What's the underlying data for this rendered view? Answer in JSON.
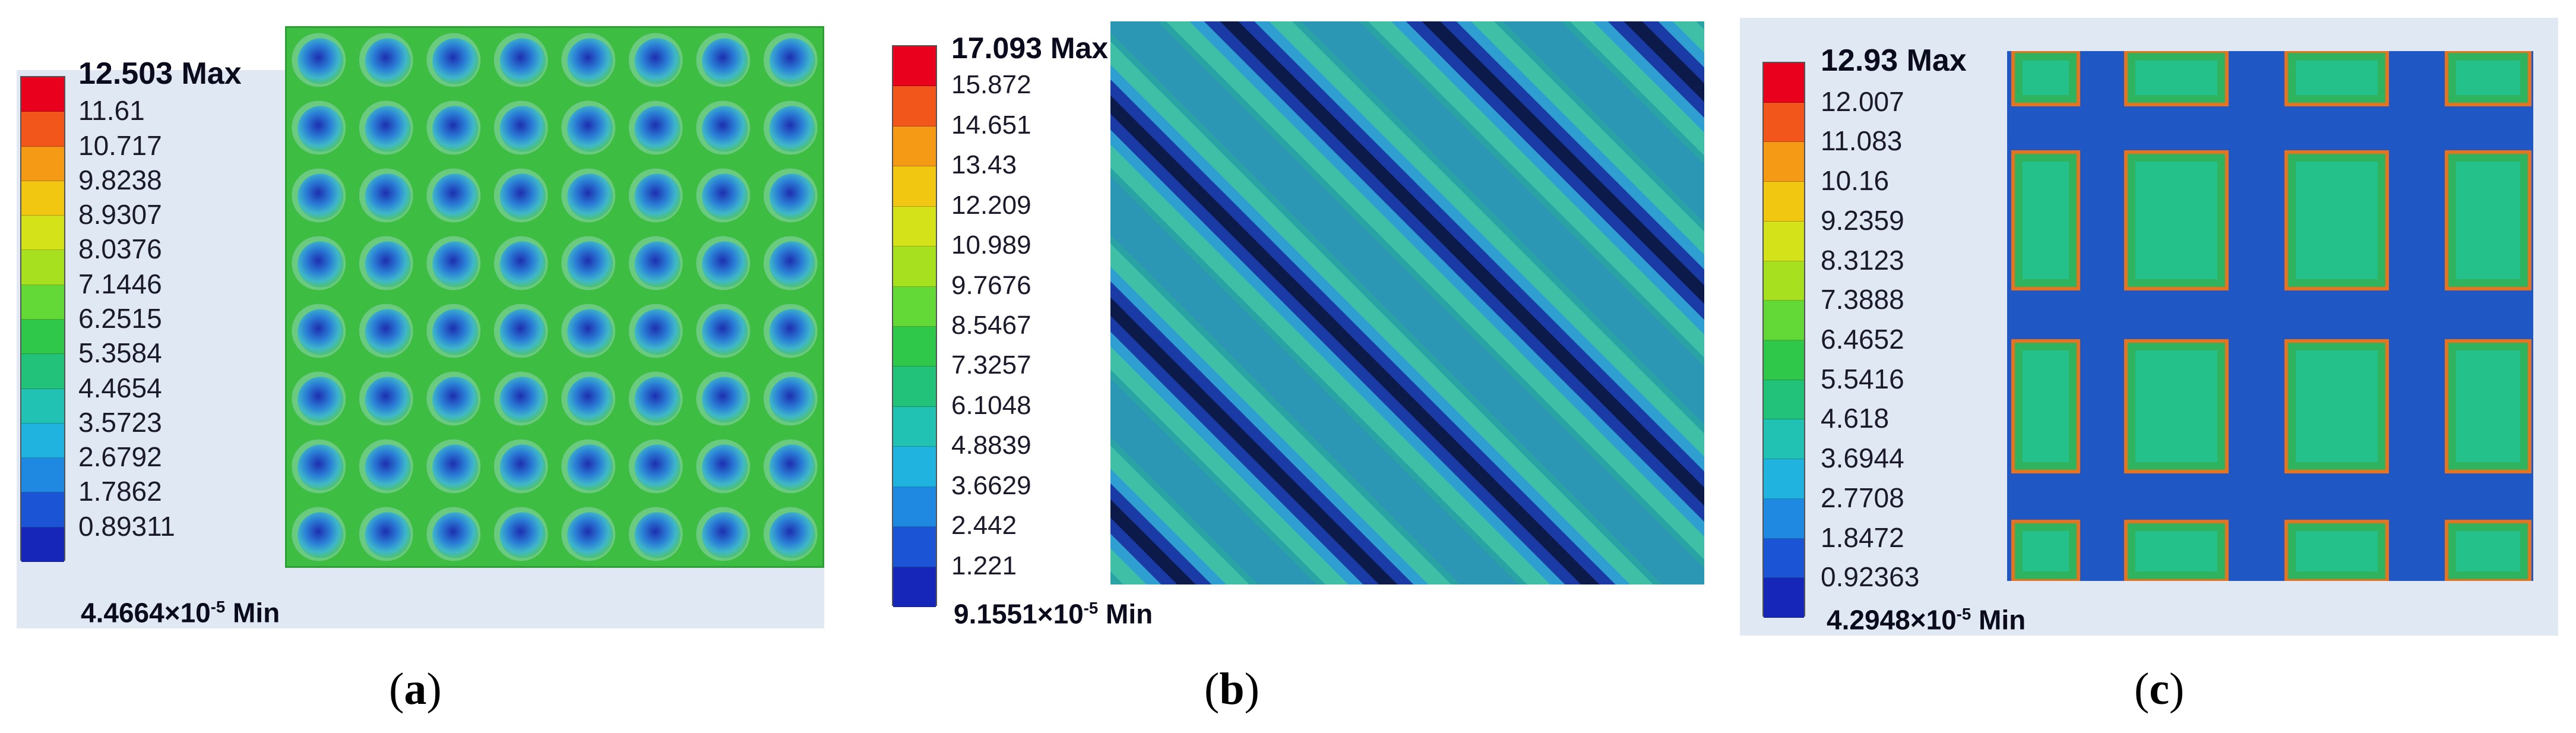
{
  "panels": [
    {
      "caption_letter": "a",
      "legend": {
        "max_label": "12.503 Max",
        "levels": [
          "11.61",
          "10.717",
          "9.8238",
          "8.9307",
          "8.0376",
          "7.1446",
          "6.2515",
          "5.3584",
          "4.4654",
          "3.5723",
          "2.6792",
          "1.7862",
          "0.89311"
        ],
        "min_mantissa": "4.4664",
        "min_exponent": "-5",
        "min_suffix": " Min"
      },
      "image": {
        "pattern": "dimple-array",
        "rows": 8,
        "cols": 8
      }
    },
    {
      "caption_letter": "b",
      "legend": {
        "max_label": "17.093 Max",
        "levels": [
          "15.872",
          "14.651",
          "13.43",
          "12.209",
          "10.989",
          "9.7676",
          "8.5467",
          "7.3257",
          "6.1048",
          "4.8839",
          "3.6629",
          "2.442",
          "1.221"
        ],
        "min_mantissa": "9.1551",
        "min_exponent": "-5",
        "min_suffix": " Min"
      },
      "image": {
        "pattern": "diagonal-grooves"
      }
    },
    {
      "caption_letter": "c",
      "legend": {
        "max_label": "12.93 Max",
        "levels": [
          "12.007",
          "11.083",
          "10.16",
          "9.2359",
          "8.3123",
          "7.3888",
          "6.4652",
          "5.5416",
          "4.618",
          "3.6944",
          "2.7708",
          "1.8472",
          "0.92363"
        ],
        "min_mantissa": "4.2948",
        "min_exponent": "-5",
        "min_suffix": " Min"
      },
      "image": {
        "pattern": "square-grid"
      }
    }
  ],
  "colors": {
    "contour_scale": [
      "#e8001c",
      "#f2561a",
      "#f59a14",
      "#f2c712",
      "#d4e21a",
      "#a6e01e",
      "#62d936",
      "#30c84a",
      "#22c27a",
      "#21c2b4",
      "#21b3e0",
      "#1f88e0",
      "#1c54d6",
      "#1526b8"
    ],
    "legend_bg": "#dfe8f3",
    "green_surface": "#3dbd42",
    "teal_surface": "#2aa3a4",
    "deep_blue": "#1d2a8c"
  }
}
